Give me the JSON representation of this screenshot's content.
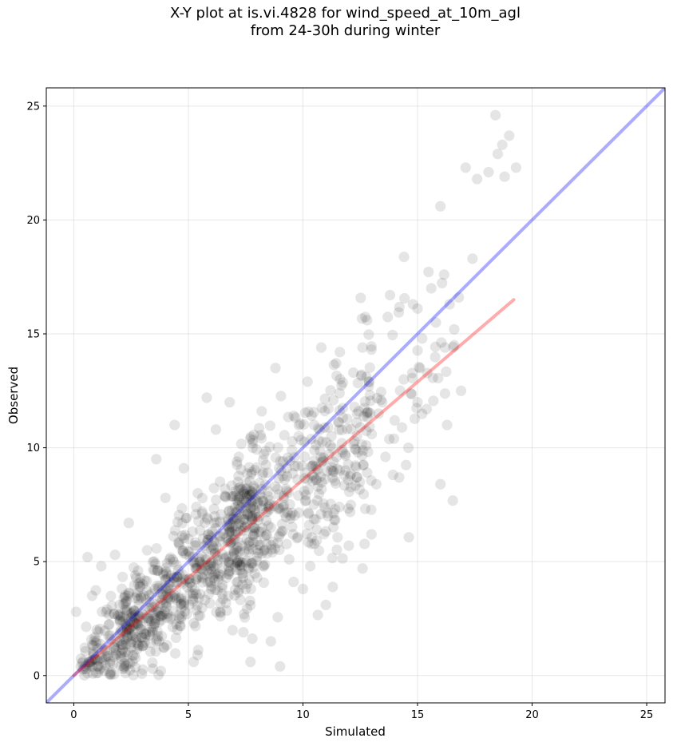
{
  "chart_data": {
    "type": "scatter",
    "title_line1": "X-Y plot at is.vi.4828 for wind_speed_at_10m_agl",
    "title_line2": "from 24-30h during winter",
    "xlabel": "Simulated",
    "ylabel": "Observed",
    "xlim": [
      -1.2,
      25.8
    ],
    "ylim": [
      -1.2,
      25.8
    ],
    "x_ticks": [
      0,
      5,
      10,
      15,
      20,
      25
    ],
    "y_ticks": [
      0,
      5,
      10,
      15,
      20,
      25
    ],
    "grid": true,
    "point_color": "#000000",
    "point_alpha": 0.1,
    "identity_line": {
      "from": [
        -1.2,
        -1.2
      ],
      "to": [
        25.8,
        25.8
      ],
      "color": "#0000ff"
    },
    "fit_line": {
      "from": [
        0,
        0
      ],
      "to": [
        19.2,
        16.5
      ],
      "color": "#ff0000"
    },
    "sample_points": [
      [
        0.1,
        2.8
      ],
      [
        0.6,
        5.2
      ],
      [
        0.8,
        3.5
      ],
      [
        1.0,
        2.0
      ],
      [
        1.2,
        4.8
      ],
      [
        1.4,
        0.8
      ],
      [
        1.6,
        1.6
      ],
      [
        1.8,
        5.3
      ],
      [
        2.0,
        3.1
      ],
      [
        2.2,
        0.4
      ],
      [
        2.4,
        6.7
      ],
      [
        2.6,
        2.2
      ],
      [
        2.8,
        4.6
      ],
      [
        3.0,
        1.3
      ],
      [
        3.2,
        5.5
      ],
      [
        3.4,
        3.0
      ],
      [
        3.6,
        9.5
      ],
      [
        3.8,
        0.2
      ],
      [
        4.0,
        7.8
      ],
      [
        4.2,
        4.1
      ],
      [
        4.4,
        11.0
      ],
      [
        4.6,
        2.5
      ],
      [
        4.8,
        9.1
      ],
      [
        5.0,
        6.0
      ],
      [
        5.2,
        3.6
      ],
      [
        5.4,
        0.9
      ],
      [
        5.6,
        7.2
      ],
      [
        5.8,
        12.2
      ],
      [
        6.0,
        4.9
      ],
      [
        6.2,
        10.8
      ],
      [
        6.4,
        2.6
      ],
      [
        6.6,
        8.2
      ],
      [
        6.8,
        12.0
      ],
      [
        7.0,
        5.4
      ],
      [
        7.2,
        9.6
      ],
      [
        7.4,
        1.9
      ],
      [
        7.6,
        7.5
      ],
      [
        7.8,
        10.2
      ],
      [
        8.0,
        4.3
      ],
      [
        8.2,
        11.6
      ],
      [
        8.4,
        6.8
      ],
      [
        8.6,
        1.5
      ],
      [
        8.8,
        13.5
      ],
      [
        9.0,
        0.4
      ],
      [
        9.2,
        8.6
      ],
      [
        9.4,
        5.1
      ],
      [
        9.6,
        11.4
      ],
      [
        9.8,
        7.9
      ],
      [
        10.0,
        3.8
      ],
      [
        10.2,
        12.9
      ],
      [
        10.4,
        9.2
      ],
      [
        10.6,
        6.4
      ],
      [
        10.8,
        14.4
      ],
      [
        11.0,
        3.1
      ],
      [
        11.2,
        10.1
      ],
      [
        11.4,
        7.3
      ],
      [
        11.6,
        12.4
      ],
      [
        11.8,
        8.8
      ],
      [
        12.0,
        5.7
      ],
      [
        12.2,
        13.3
      ],
      [
        12.4,
        9.8
      ],
      [
        12.6,
        4.7
      ],
      [
        12.8,
        15.6
      ],
      [
        13.0,
        10.6
      ],
      [
        13.2,
        8.4
      ],
      [
        13.4,
        12.1
      ],
      [
        13.6,
        9.6
      ],
      [
        13.8,
        16.7
      ],
      [
        14.0,
        11.2
      ],
      [
        14.2,
        8.7
      ],
      [
        14.4,
        13.0
      ],
      [
        14.6,
        10.0
      ],
      [
        14.8,
        16.3
      ],
      [
        15.0,
        12.0
      ],
      [
        15.2,
        14.8
      ],
      [
        15.4,
        11.7
      ],
      [
        15.6,
        17.0
      ],
      [
        15.8,
        15.5
      ],
      [
        16.0,
        8.4
      ],
      [
        16.0,
        20.6
      ],
      [
        16.2,
        14.4
      ],
      [
        16.4,
        16.3
      ],
      [
        16.6,
        15.2
      ],
      [
        16.8,
        16.6
      ],
      [
        16.9,
        12.5
      ],
      [
        17.1,
        22.3
      ],
      [
        17.4,
        18.3
      ],
      [
        17.6,
        21.8
      ],
      [
        18.1,
        22.1
      ],
      [
        18.4,
        24.6
      ],
      [
        18.5,
        22.9
      ],
      [
        18.7,
        23.3
      ],
      [
        18.8,
        21.9
      ],
      [
        19.0,
        23.7
      ],
      [
        19.3,
        22.3
      ],
      [
        3.3,
        2.5
      ],
      [
        4.1,
        3.4
      ],
      [
        4.9,
        4.2
      ],
      [
        5.5,
        5.0
      ],
      [
        6.1,
        5.6
      ],
      [
        6.9,
        6.3
      ],
      [
        7.7,
        7.0
      ],
      [
        8.5,
        7.4
      ],
      [
        9.3,
        8.1
      ],
      [
        10.1,
        8.9
      ],
      [
        10.9,
        9.4
      ],
      [
        11.7,
        10.2
      ],
      [
        12.5,
        10.9
      ],
      [
        13.3,
        11.5
      ],
      [
        2.9,
        3.9
      ]
    ]
  }
}
